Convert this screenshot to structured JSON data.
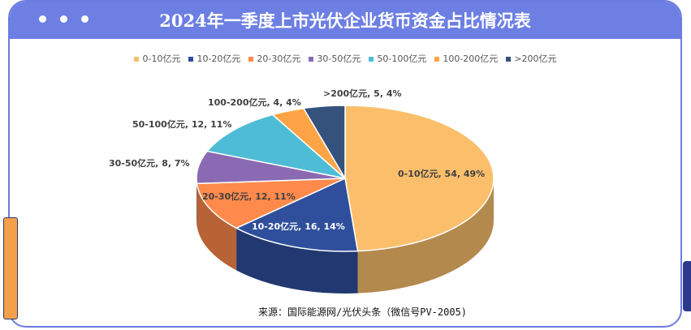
{
  "title": "2024年一季度上市光伏企业货币资金占比情况表",
  "source": "来源：国际能源网/光伏头条（微信号PV-2005)",
  "chart_data": {
    "type": "pie",
    "title": "2024年一季度上市光伏企业货币资金占比情况表",
    "legend_position": "top",
    "categories": [
      "0-10亿元",
      "10-20亿元",
      "20-30亿元",
      "30-50亿元",
      "50-100亿元",
      "100-200亿元",
      ">200亿元"
    ],
    "values": [
      54,
      16,
      12,
      8,
      12,
      4,
      5
    ],
    "percents": [
      49,
      14,
      11,
      7,
      11,
      4,
      4
    ],
    "colors": [
      "#fbbf6c",
      "#2f4f9c",
      "#ff8a4c",
      "#8a6bb3",
      "#4fbcd6",
      "#ffa446",
      "#34527c"
    ],
    "labels": [
      "0-10亿元, 54, 49%",
      "10-20亿元, 16, 14%",
      "20-30亿元, 12, 11%",
      "30-50亿元, 8, 7%",
      "50-100亿元, 12, 11%",
      "100-200亿元, 4, 4%",
      ">200亿元, 5, 4%"
    ]
  }
}
